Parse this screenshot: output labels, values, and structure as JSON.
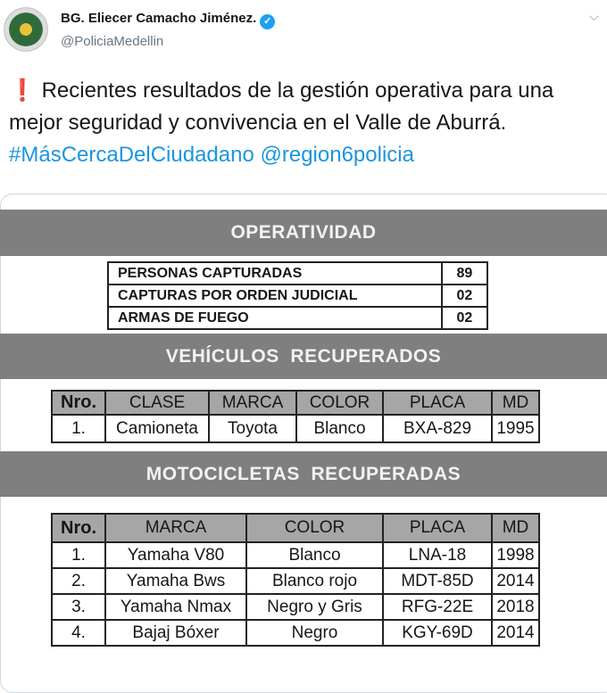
{
  "tweet": {
    "name": "BG. Eliecer Camacho Jiménez.",
    "handle": "@PoliciaMedellin",
    "verified_icon": "verified-badge-icon",
    "text": "Recientes resultados de la gestión operativa para una mejor seguridad y convivencia en el Valle de Aburrá.",
    "hashtag": "#MásCercaDelCiudadano",
    "mention": "@region6policia",
    "accent": "#1b95e0"
  },
  "image": {
    "operatividad": {
      "title": "OPERATIVIDAD",
      "rows": [
        [
          "PERSONAS CAPTURADAS",
          "89"
        ],
        [
          "CAPTURAS POR ORDEN JUDICIAL",
          "02"
        ],
        [
          "ARMAS DE FUEGO",
          "02"
        ]
      ]
    },
    "vehiculos": {
      "title": "VEHÍCULOS  RECUPERADOS",
      "headers": [
        "Nro.",
        "CLASE",
        "MARCA",
        "COLOR",
        "PLACA",
        "MD"
      ],
      "rows": [
        [
          "1.",
          "Camioneta",
          "Toyota",
          "Blanco",
          "BXA-829",
          "1995"
        ]
      ]
    },
    "motos": {
      "title": "MOTOCICLETAS  RECUPERADAS",
      "headers": [
        "Nro.",
        "MARCA",
        "COLOR",
        "PLACA",
        "MD"
      ],
      "rows": [
        [
          "1.",
          "Yamaha V80",
          "Blanco",
          "LNA-18",
          "1998"
        ],
        [
          "2.",
          "Yamaha Bws",
          "Blanco rojo",
          "MDT-85D",
          "2014"
        ],
        [
          "3.",
          "Yamaha Nmax",
          "Negro y Gris",
          "RFG-22E",
          "2018"
        ],
        [
          "4.",
          "Bajaj Bóxer",
          "Negro",
          "KGY-69D",
          "2014"
        ]
      ]
    }
  }
}
